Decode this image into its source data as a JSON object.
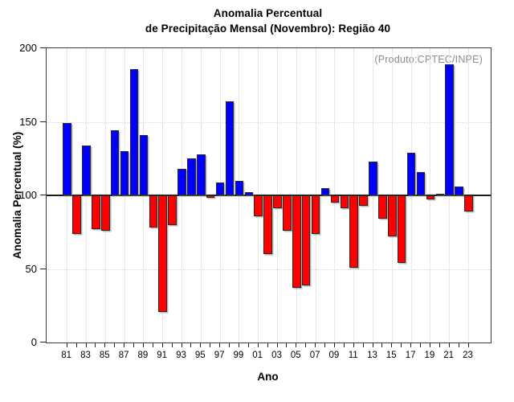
{
  "title": {
    "line1": "Anomalia Percentual",
    "line2": "de Precipitação Mensal (Novembro): Região 40"
  },
  "annotation": {
    "text": "(Produto:CPTEC/INPE)",
    "color": "#8c8c8c"
  },
  "chart_data": {
    "type": "bar",
    "title": "Anomalia Percentual de Precipitação Mensal (Novembro): Região 40",
    "xlabel": "Ano",
    "ylabel": "Anomalia Percentual (%)",
    "ylim": [
      0,
      200
    ],
    "yticks": [
      0,
      50,
      100,
      150,
      200
    ],
    "baseline": 100,
    "grid": {
      "horizontal_dotted_at": [
        50,
        150
      ],
      "vertical_dotted_at_labeled_ticks": true
    },
    "legend": "none",
    "colors": {
      "above_baseline": "#0000ff",
      "below_baseline": "#ff0000",
      "bar_border": "#2a2a2a"
    },
    "categories": [
      "81",
      "82",
      "83",
      "84",
      "85",
      "86",
      "87",
      "88",
      "89",
      "90",
      "91",
      "92",
      "93",
      "94",
      "95",
      "96",
      "97",
      "98",
      "99",
      "00",
      "01",
      "02",
      "03",
      "04",
      "05",
      "06",
      "07",
      "08",
      "09",
      "10",
      "11",
      "12",
      "13",
      "14",
      "15",
      "16",
      "17",
      "18",
      "19",
      "20",
      "21",
      "22",
      "23"
    ],
    "x_tick_labels_shown": [
      "81",
      "83",
      "85",
      "87",
      "89",
      "91",
      "93",
      "95",
      "97",
      "99",
      "01",
      "03",
      "05",
      "07",
      "09",
      "11",
      "13",
      "15",
      "17",
      "19",
      "21",
      "23"
    ],
    "values": [
      149,
      74,
      134,
      77,
      76,
      144,
      130,
      186,
      141,
      78,
      21,
      80,
      118,
      125,
      128,
      98.5,
      109,
      164,
      110,
      102,
      86,
      60,
      91,
      76,
      37,
      39,
      74,
      105,
      95,
      91,
      51,
      93,
      123,
      84,
      72,
      54,
      129,
      116,
      97,
      100.8,
      189,
      106,
      89
    ]
  }
}
